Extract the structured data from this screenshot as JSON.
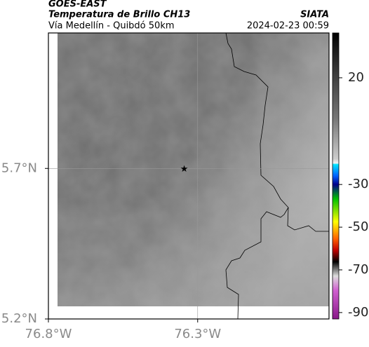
{
  "header": {
    "source": "GOES-EAST",
    "title": "Temperatura de Brillo CH13",
    "brand": "SIATA",
    "subtitle": "Vía Medellín - Quibdó 50km",
    "datetime": "2024-02-23 00:59"
  },
  "map": {
    "xlim": [
      -76.8,
      -75.86
    ],
    "ylim": [
      5.2,
      6.15
    ],
    "xticks": [
      {
        "value": -76.8,
        "label": "76.8°W"
      },
      {
        "value": -76.3,
        "label": "76.3°W"
      }
    ],
    "yticks": [
      {
        "value": 5.7,
        "label": "5.7°N"
      },
      {
        "value": 5.2,
        "label": "5.2°N"
      }
    ],
    "grid": true,
    "marker": {
      "lon": -76.345,
      "lat": 5.7
    },
    "colorbar": {
      "clim": [
        -93,
        41
      ],
      "ticks": [
        20,
        -30,
        -50,
        -70,
        -90
      ]
    }
  }
}
